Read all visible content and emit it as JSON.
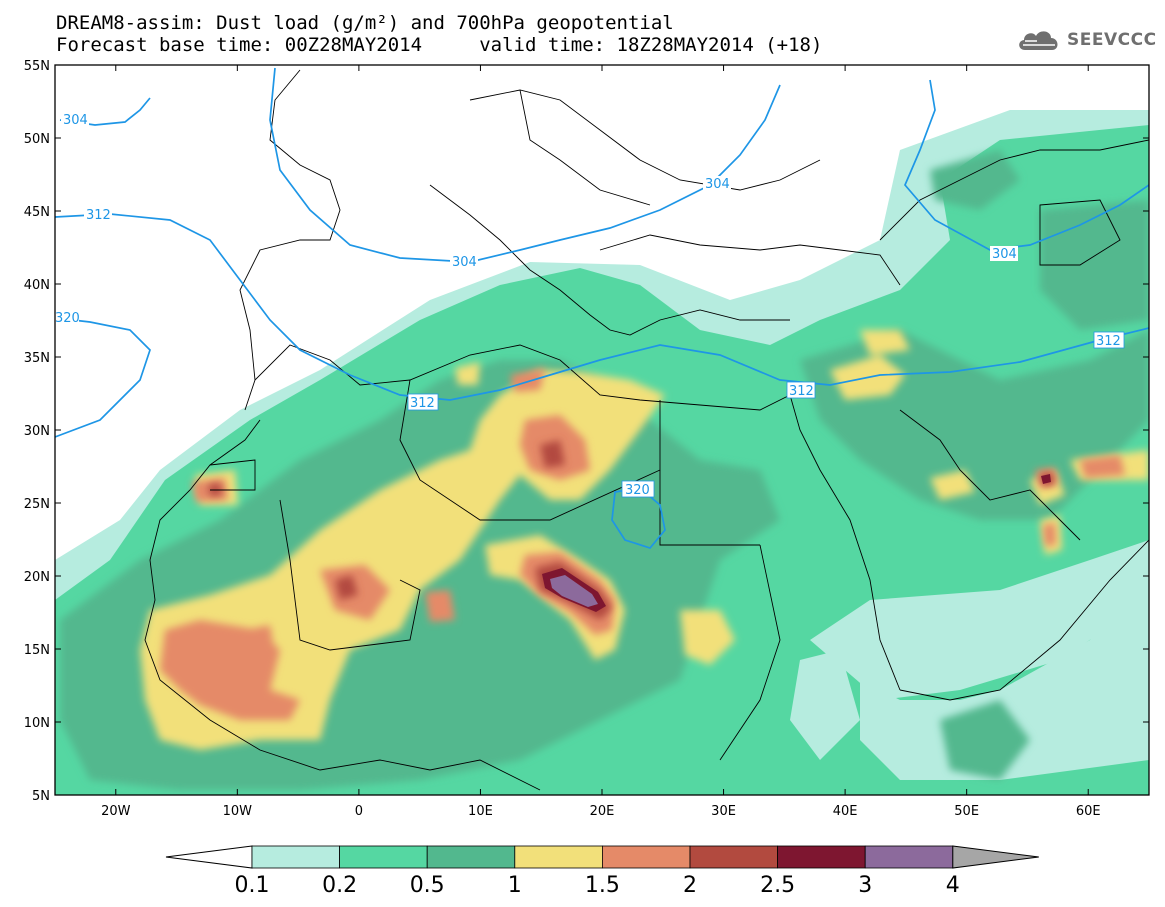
{
  "header": {
    "line1": "DREAM8-assim: Dust load (g/m²) and 700hPa geopotential",
    "line2": "Forecast base time: 00Z28MAY2014     valid time: 18Z28MAY2014 (+18)"
  },
  "logo": {
    "text": "SEEVCCC",
    "icon": "cloud-icon"
  },
  "map": {
    "lon_range": [
      -25,
      65
    ],
    "lat_range": [
      5,
      55
    ],
    "lon_ticks": [
      "20W",
      "10W",
      "0",
      "10E",
      "20E",
      "30E",
      "40E",
      "50E",
      "60E"
    ],
    "lat_ticks": [
      "55N",
      "50N",
      "45N",
      "40N",
      "35N",
      "30N",
      "25N",
      "20N",
      "15N",
      "10N",
      "5N"
    ]
  },
  "contours": {
    "color": "#1e96e6",
    "labels": [
      "304",
      "312",
      "304",
      "304",
      "320",
      "312",
      "312",
      "304",
      "312",
      "320"
    ]
  },
  "colorbar": {
    "levels": [
      "0.1",
      "0.2",
      "0.5",
      "1",
      "1.5",
      "2",
      "2.5",
      "3",
      "4"
    ],
    "colors": [
      "#b6ecdf",
      "#55d7a2",
      "#52b88e",
      "#f2e07a",
      "#e58a68",
      "#b24a3f",
      "#7e1630",
      "#8c6a9c"
    ],
    "low_extend_color": "#ffffff",
    "high_extend_color": "#a6a6a6"
  }
}
